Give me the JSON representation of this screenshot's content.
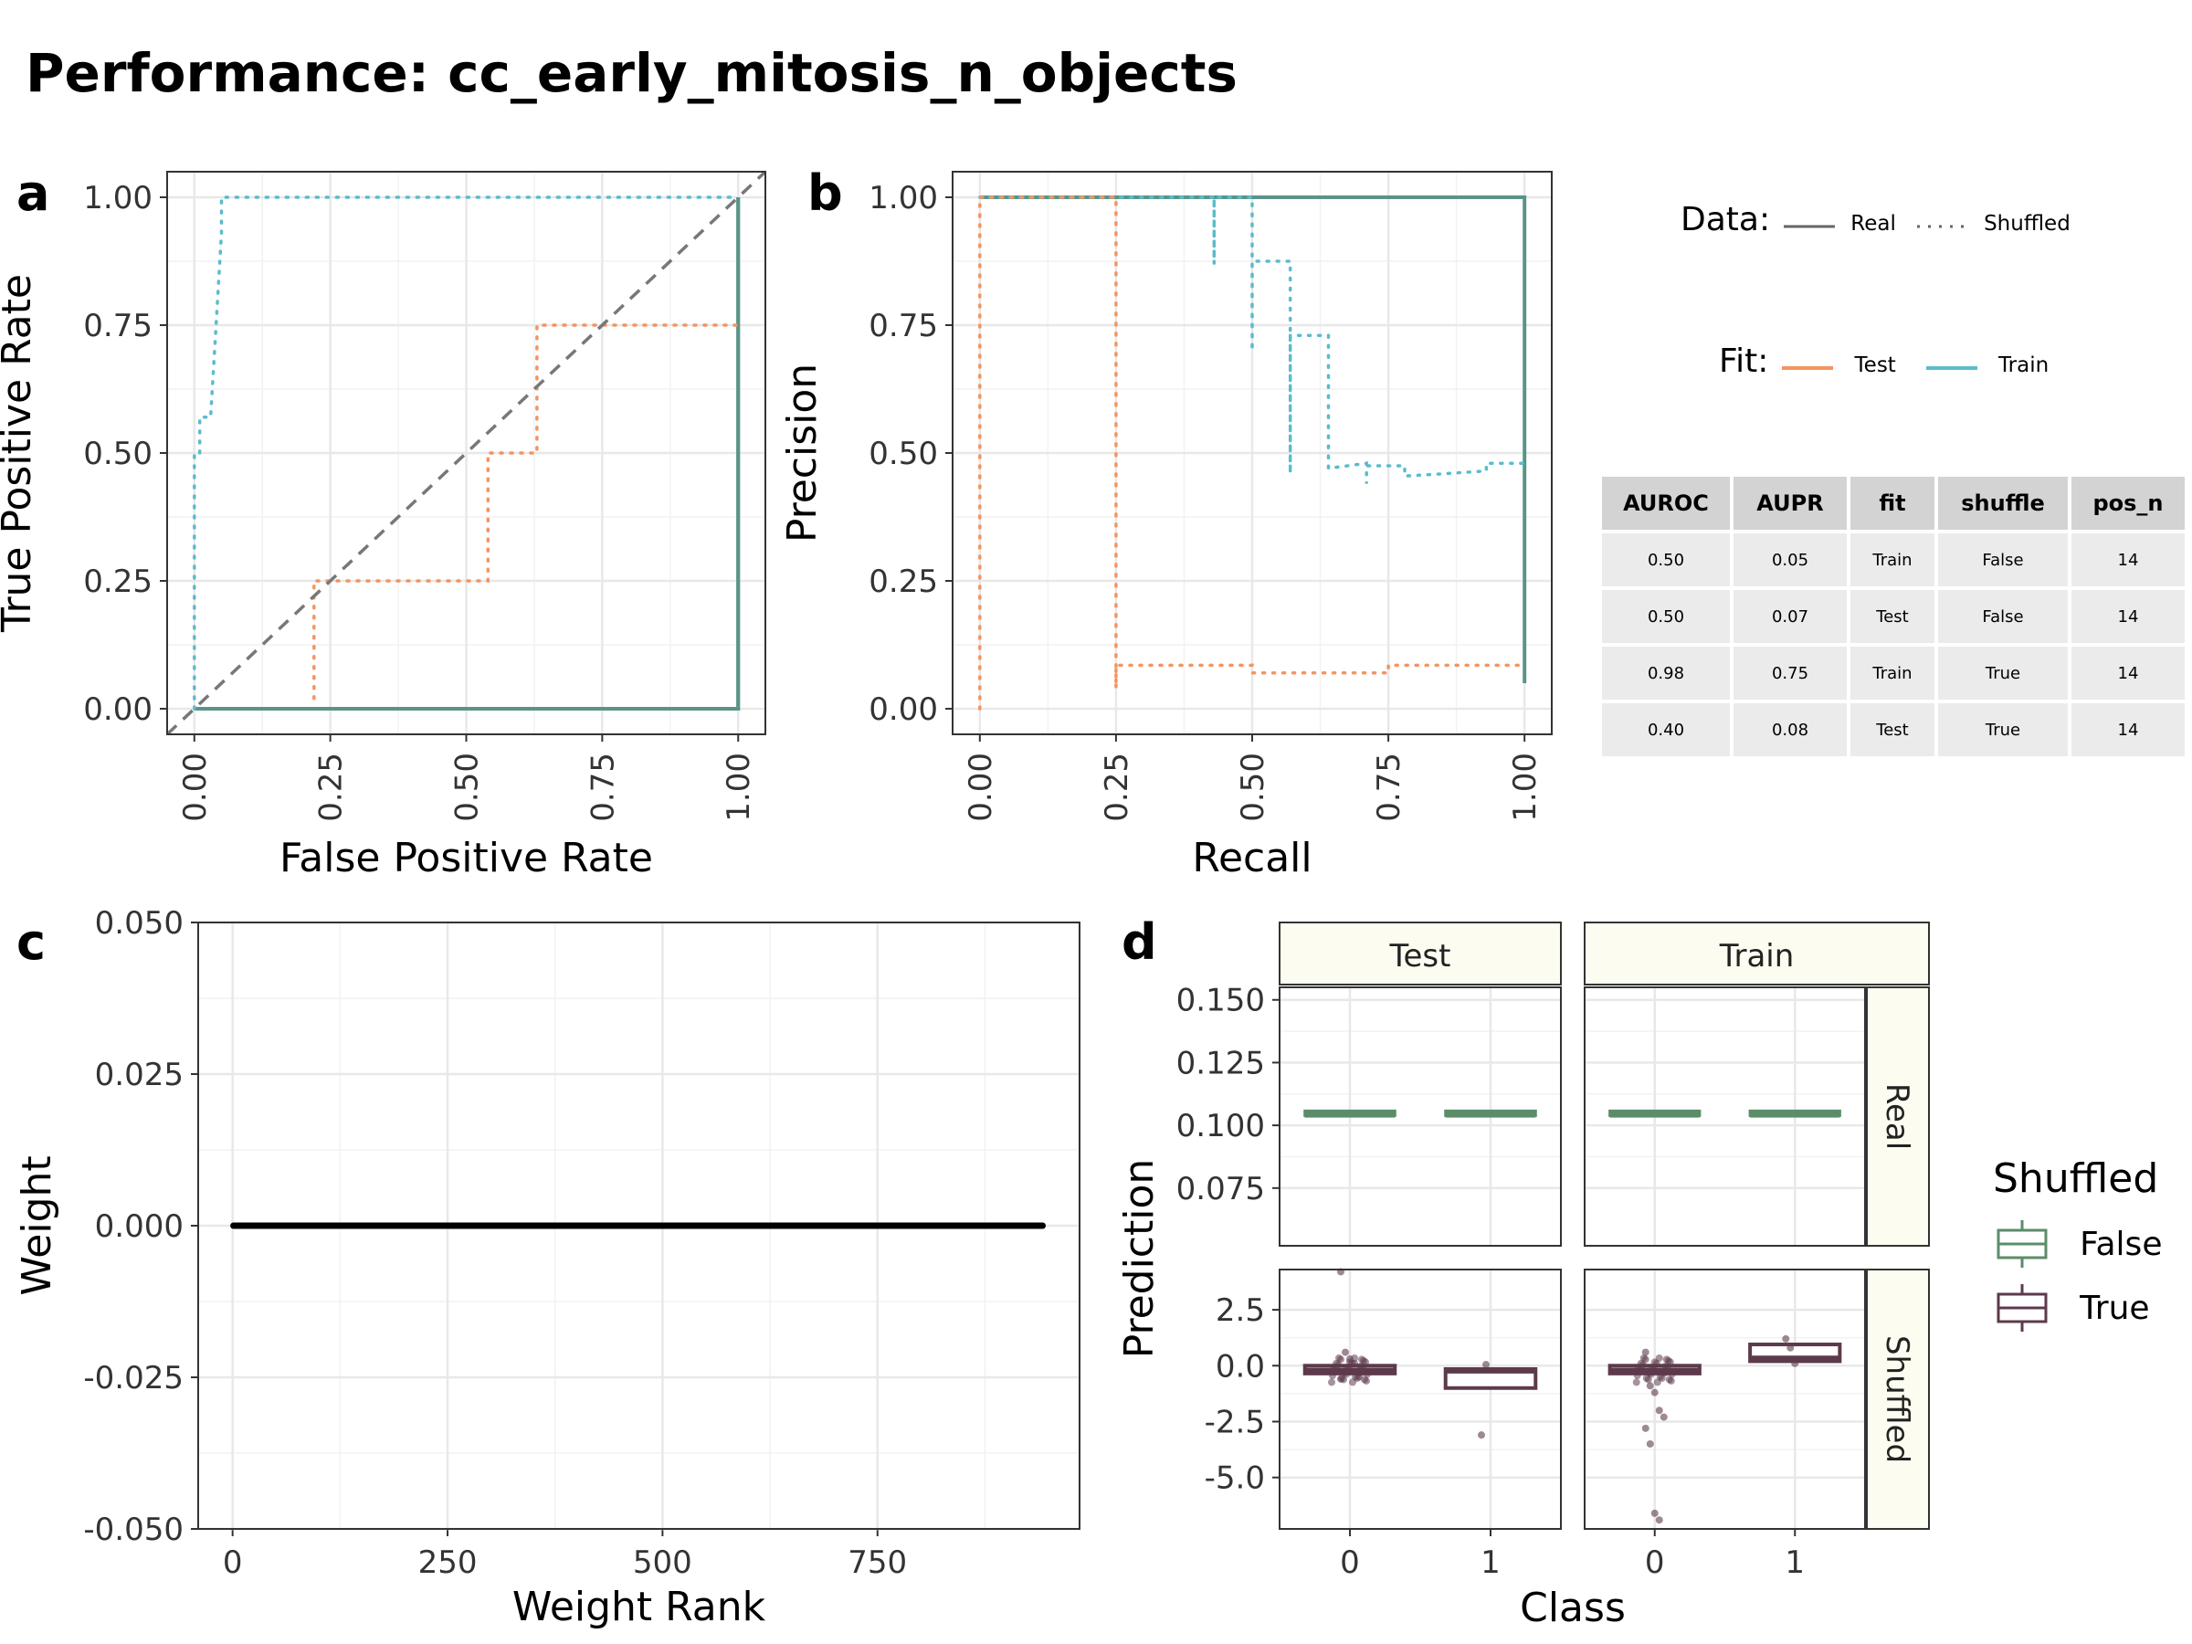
{
  "title": "Performance: cc_early_mitosis_n_objects",
  "colors": {
    "test": "#f4945f",
    "train": "#5bbccb",
    "real_mix": "#5a9488",
    "false": "#5b8d69",
    "true": "#5c3a4c"
  },
  "panel_labels": {
    "a": "a",
    "b": "b",
    "c": "c",
    "d": "d"
  },
  "legends": {
    "data_title": "Data:",
    "data_real": "Real",
    "data_shuffled": "Shuffled",
    "fit_title": "Fit:",
    "fit_test": "Test",
    "fit_train": "Train",
    "shuffled_title": "Shuffled",
    "shuffled_false": "False",
    "shuffled_true": "True"
  },
  "table": {
    "headers": [
      "AUROC",
      "AUPR",
      "fit",
      "shuffle",
      "pos_n"
    ],
    "rows": [
      [
        "0.50",
        "0.05",
        "Train",
        "False",
        "14"
      ],
      [
        "0.50",
        "0.07",
        "Test",
        "False",
        "14"
      ],
      [
        "0.98",
        "0.75",
        "Train",
        "True",
        "14"
      ],
      [
        "0.40",
        "0.08",
        "Test",
        "True",
        "14"
      ]
    ]
  },
  "chart_data": [
    {
      "id": "a",
      "type": "line",
      "xlabel": "False Positive Rate",
      "ylabel": "True Positive Rate",
      "xlim": [
        -0.05,
        1.05
      ],
      "ylim": [
        -0.05,
        1.05
      ],
      "xticks": [
        "0.00",
        "0.25",
        "0.50",
        "0.75",
        "1.00"
      ],
      "yticks": [
        "0.00",
        "0.25",
        "0.50",
        "0.75",
        "1.00"
      ],
      "series": [
        {
          "name": "Train Real",
          "style": "solid",
          "color": "real_mix",
          "points": [
            [
              0,
              0
            ],
            [
              1,
              0
            ],
            [
              1,
              1
            ]
          ]
        },
        {
          "name": "Test Real",
          "style": "solid",
          "color": "real_mix",
          "points": [
            [
              0,
              0
            ],
            [
              1,
              0
            ],
            [
              1,
              1
            ]
          ]
        },
        {
          "name": "Train Shuffled",
          "style": "dotted",
          "color": "train",
          "points": [
            [
              0,
              0
            ],
            [
              0,
              0.5
            ],
            [
              0.01,
              0.5
            ],
            [
              0.01,
              0.57
            ],
            [
              0.03,
              0.57
            ],
            [
              0.04,
              0.75
            ],
            [
              0.05,
              0.93
            ],
            [
              0.05,
              1.0
            ],
            [
              1,
              1
            ]
          ]
        },
        {
          "name": "Test Shuffled",
          "style": "dotted",
          "color": "test",
          "points": [
            [
              0.22,
              0.02
            ],
            [
              0.22,
              0.25
            ],
            [
              0.54,
              0.25
            ],
            [
              0.54,
              0.5
            ],
            [
              0.63,
              0.5
            ],
            [
              0.63,
              0.75
            ],
            [
              1,
              0.75
            ]
          ]
        },
        {
          "name": "Chance",
          "style": "dashed",
          "color": "gray",
          "points": [
            [
              -0.05,
              -0.05
            ],
            [
              1.05,
              1.05
            ]
          ]
        }
      ]
    },
    {
      "id": "b",
      "type": "line",
      "xlabel": "Recall",
      "ylabel": "Precision",
      "xlim": [
        -0.05,
        1.05
      ],
      "ylim": [
        -0.05,
        1.05
      ],
      "xticks": [
        "0.00",
        "0.25",
        "0.50",
        "0.75",
        "1.00"
      ],
      "yticks": [
        "0.00",
        "0.25",
        "0.50",
        "0.75",
        "1.00"
      ],
      "series": [
        {
          "name": "Real",
          "style": "solid",
          "color": "real_mix",
          "points": [
            [
              0,
              1
            ],
            [
              1,
              1
            ],
            [
              1,
              0.05
            ]
          ]
        },
        {
          "name": "Train Shuffled",
          "style": "dotted",
          "color": "train",
          "points": [
            [
              0,
              1
            ],
            [
              0.43,
              1
            ],
            [
              0.43,
              0.87
            ],
            [
              0.43,
              1
            ],
            [
              0.5,
              1
            ],
            [
              0.5,
              0.7
            ],
            [
              0.5,
              0.875
            ],
            [
              0.57,
              0.875
            ],
            [
              0.57,
              0.46
            ],
            [
              0.57,
              0.73
            ],
            [
              0.64,
              0.73
            ],
            [
              0.64,
              0.47
            ],
            [
              0.71,
              0.48
            ],
            [
              0.71,
              0.44
            ],
            [
              0.71,
              0.475
            ],
            [
              0.78,
              0.475
            ],
            [
              0.78,
              0.455
            ],
            [
              0.86,
              0.46
            ],
            [
              0.93,
              0.465
            ],
            [
              0.93,
              0.48
            ],
            [
              1,
              0.48
            ]
          ]
        },
        {
          "name": "Test Shuffled",
          "style": "dotted",
          "color": "test",
          "points": [
            [
              0,
              0
            ],
            [
              0,
              1
            ],
            [
              0.25,
              1
            ],
            [
              0.25,
              0.04
            ],
            [
              0.25,
              0.085
            ],
            [
              0.5,
              0.085
            ],
            [
              0.5,
              0.07
            ],
            [
              0.75,
              0.07
            ],
            [
              0.75,
              0.085
            ],
            [
              1,
              0.085
            ]
          ]
        }
      ]
    },
    {
      "id": "c",
      "type": "line",
      "xlabel": "Weight Rank",
      "ylabel": "Weight",
      "xlim": [
        -40,
        985
      ],
      "ylim": [
        -0.05,
        0.05
      ],
      "xticks": [
        "0",
        "250",
        "500",
        "750"
      ],
      "xtick_values": [
        0,
        250,
        500,
        750
      ],
      "yticks": [
        "0.050",
        "0.025",
        "0.000",
        "-0.025",
        "-0.050"
      ],
      "ytick_values": [
        0.05,
        0.025,
        0,
        -0.025,
        -0.05
      ],
      "series": [
        {
          "name": "weights",
          "points": [
            [
              1,
              0
            ],
            [
              942,
              0
            ]
          ]
        }
      ]
    },
    {
      "id": "d",
      "type": "box",
      "xlabel": "Class",
      "ylabel": "Prediction",
      "col_facets": [
        "Test",
        "Train"
      ],
      "row_facets": [
        "Real",
        "Shuffled"
      ],
      "categories": [
        "0",
        "1"
      ],
      "real_ylim": [
        0.052,
        0.155
      ],
      "real_yticks": [
        "0.150",
        "0.125",
        "0.100",
        "0.075"
      ],
      "real_ytick_values": [
        0.15,
        0.125,
        0.1,
        0.075
      ],
      "shuffled_ylim": [
        -7.3,
        4.3
      ],
      "shuffled_yticks": [
        "2.5",
        "0.0",
        "-2.5",
        "-5.0"
      ],
      "shuffled_ytick_values": [
        2.5,
        0,
        -2.5,
        -5
      ],
      "boxes": [
        {
          "facet": "Test",
          "row": "Real",
          "class": "0",
          "q1": 0.104,
          "median": 0.104,
          "q3": 0.105
        },
        {
          "facet": "Test",
          "row": "Real",
          "class": "1",
          "q1": 0.104,
          "median": 0.104,
          "q3": 0.105
        },
        {
          "facet": "Train",
          "row": "Real",
          "class": "0",
          "q1": 0.104,
          "median": 0.104,
          "q3": 0.105
        },
        {
          "facet": "Train",
          "row": "Real",
          "class": "1",
          "q1": 0.104,
          "median": 0.104,
          "q3": 0.105
        },
        {
          "facet": "Test",
          "row": "Shuffled",
          "class": "0",
          "q1": -0.35,
          "median": -0.2,
          "q3": 0.0
        },
        {
          "facet": "Test",
          "row": "Shuffled",
          "class": "1",
          "q1": -1.0,
          "median": -0.25,
          "q3": -0.15
        },
        {
          "facet": "Train",
          "row": "Shuffled",
          "class": "0",
          "q1": -0.35,
          "median": -0.2,
          "q3": 0.0
        },
        {
          "facet": "Train",
          "row": "Shuffled",
          "class": "1",
          "q1": 0.2,
          "median": 0.35,
          "q3": 0.95
        }
      ],
      "outliers": [
        {
          "facet": "Test",
          "class": "0",
          "values": [
            4.2,
            0.6,
            0.3,
            0.1,
            -0.5,
            -0.6
          ]
        },
        {
          "facet": "Test",
          "class": "1",
          "values": [
            -3.1,
            0.05
          ]
        },
        {
          "facet": "Train",
          "class": "0",
          "values": [
            0.6,
            -0.9,
            -1.2,
            -2.0,
            -2.3,
            -2.8,
            -3.5,
            -6.6,
            -6.9
          ]
        },
        {
          "facet": "Train",
          "class": "1",
          "values": [
            1.2,
            0.8,
            0.1
          ]
        }
      ]
    }
  ]
}
